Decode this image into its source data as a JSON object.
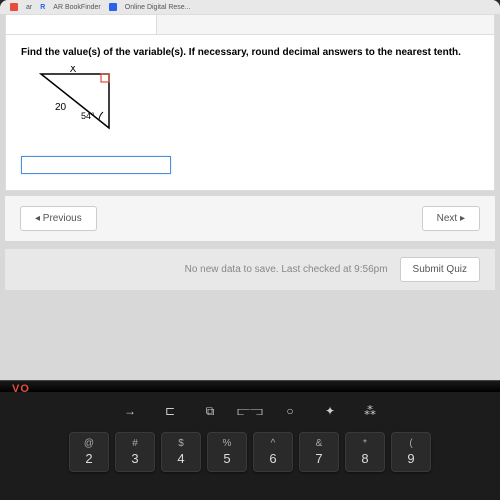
{
  "tabs": {
    "item1": "ar",
    "item2": "AR BookFinder",
    "item3": "Online Digital Rese..."
  },
  "question": {
    "text": "Find the value(s) of the variable(s). If necessary, round decimal answers to the nearest tenth."
  },
  "triangle": {
    "label_top": "X",
    "label_hyp": "20",
    "label_angle": "54°",
    "stroke": "#000000",
    "right_angle_marker": "#d94d3a"
  },
  "nav": {
    "prev": "◂  Previous",
    "next": "Next  ▸"
  },
  "footer": {
    "status": "No new data to save. Last checked at 9:56pm",
    "submit": "Submit Quiz"
  },
  "brand": "VO",
  "keyboard": {
    "fn_icons": [
      "→",
      "⊏",
      "⧉",
      "⫍⫎",
      "○",
      "✦",
      "⁂"
    ],
    "keys": [
      {
        "sym": "@",
        "num": "2"
      },
      {
        "sym": "#",
        "num": "3"
      },
      {
        "sym": "$",
        "num": "4"
      },
      {
        "sym": "%",
        "num": "5"
      },
      {
        "sym": "^",
        "num": "6"
      },
      {
        "sym": "&",
        "num": "7"
      },
      {
        "sym": "*",
        "num": "8"
      },
      {
        "sym": "(",
        "num": "9"
      }
    ]
  }
}
